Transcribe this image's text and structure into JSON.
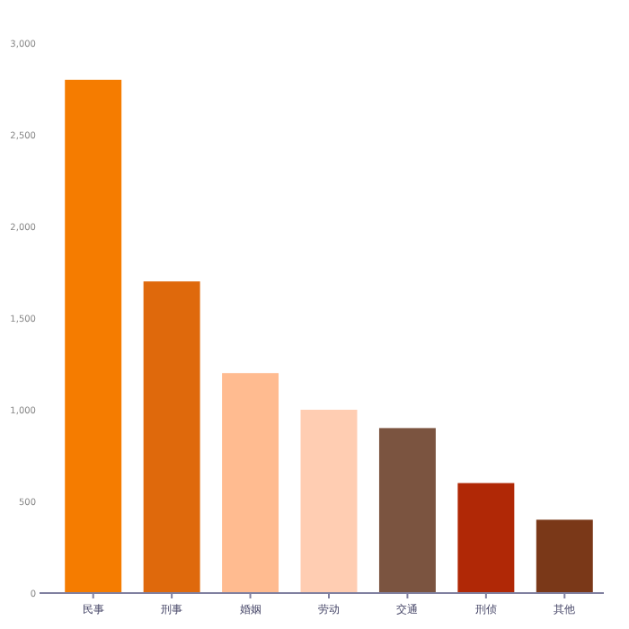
{
  "chart_data": {
    "type": "bar",
    "categories": [
      "民事",
      "刑事",
      "婚姻",
      "劳动",
      "交通",
      "刑侦",
      "其他"
    ],
    "values": [
      2800,
      1700,
      1200,
      1000,
      900,
      600,
      400
    ],
    "colors": [
      "#f57c00",
      "#df690c",
      "#ffbb90",
      "#ffcdb2",
      "#7b5440",
      "#b02806",
      "#7a3818"
    ],
    "ylim": [
      0,
      3000
    ],
    "yticks": [
      0,
      500,
      {
        "value": 1000,
        "label": "1,000"
      },
      {
        "value": 1500,
        "label": "1,500"
      },
      {
        "value": 2000,
        "label": "2,000"
      },
      {
        "value": 2500,
        "label": "2,500"
      },
      {
        "value": 3000,
        "label": "3,000"
      }
    ],
    "grid": false
  }
}
